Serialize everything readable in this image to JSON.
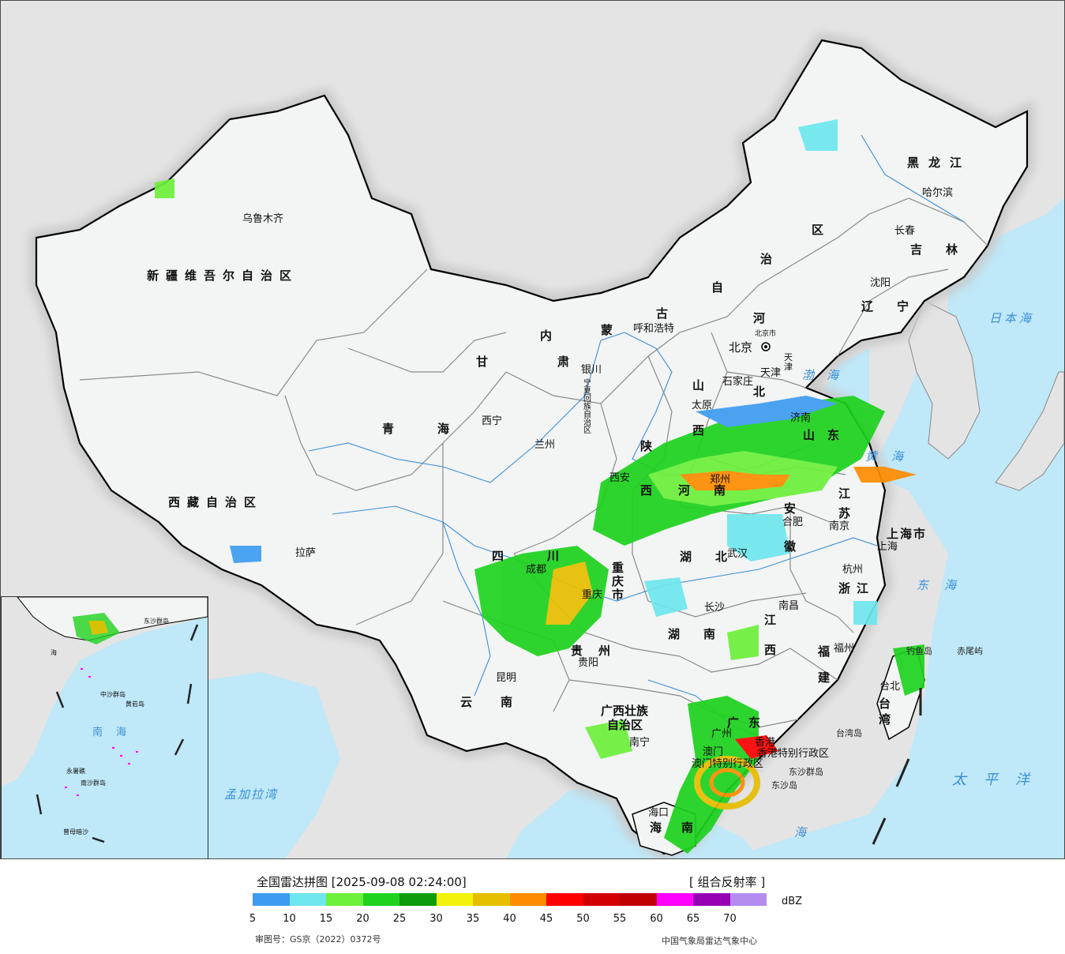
{
  "map": {
    "province_labels": [
      {
        "id": "xinjiang",
        "text": "新疆维吾尔自治区"
      },
      {
        "id": "xizang",
        "text": "西藏自治区"
      },
      {
        "id": "qinghai",
        "text": "青海"
      },
      {
        "id": "gansu",
        "text": "甘肃"
      },
      {
        "id": "neimenggu-1",
        "text": "内"
      },
      {
        "id": "neimenggu-2",
        "text": "蒙"
      },
      {
        "id": "neimenggu-3",
        "text": "古"
      },
      {
        "id": "neimenggu-4",
        "text": "自"
      },
      {
        "id": "neimenggu-5",
        "text": "治"
      },
      {
        "id": "neimenggu-6",
        "text": "区"
      },
      {
        "id": "heilongjiang",
        "text": "黑龙江"
      },
      {
        "id": "jilin",
        "text": "吉林"
      },
      {
        "id": "liaoning",
        "text": "辽宁"
      },
      {
        "id": "hebei-1",
        "text": "河"
      },
      {
        "id": "hebei-2",
        "text": "北"
      },
      {
        "id": "shanxi-1",
        "text": "山"
      },
      {
        "id": "shanxi-2",
        "text": "西"
      },
      {
        "id": "shandong",
        "text": "山东"
      },
      {
        "id": "henan",
        "text": "河南"
      },
      {
        "id": "shaanxi-1",
        "text": "陕"
      },
      {
        "id": "shaanxi-2",
        "text": "西"
      },
      {
        "id": "ningxia",
        "text": "宁夏回族自治区"
      },
      {
        "id": "sichuan",
        "text": "四川"
      },
      {
        "id": "chongqing",
        "text": "重庆市"
      },
      {
        "id": "hubei",
        "text": "湖北"
      },
      {
        "id": "hunan",
        "text": "湖南"
      },
      {
        "id": "anhui-1",
        "text": "安"
      },
      {
        "id": "anhui-2",
        "text": "徽"
      },
      {
        "id": "jiangsu",
        "text": "江苏"
      },
      {
        "id": "shanghai",
        "text": "上海市"
      },
      {
        "id": "zhejiang",
        "text": "浙江"
      },
      {
        "id": "jiangxi-1",
        "text": "江"
      },
      {
        "id": "jiangxi-2",
        "text": "西"
      },
      {
        "id": "fujian-1",
        "text": "福"
      },
      {
        "id": "fujian-2",
        "text": "建"
      },
      {
        "id": "taiwan",
        "text": "台湾"
      },
      {
        "id": "guangdong",
        "text": "广东"
      },
      {
        "id": "guangxi-1",
        "text": "广西壮族"
      },
      {
        "id": "guangxi-2",
        "text": "自治区"
      },
      {
        "id": "guizhou",
        "text": "贵州"
      },
      {
        "id": "yunnan",
        "text": "云南"
      },
      {
        "id": "hainan-1",
        "text": "海"
      },
      {
        "id": "hainan-2",
        "text": "南"
      },
      {
        "id": "hongkong",
        "text": "香港特别行政区"
      },
      {
        "id": "macao",
        "text": "澳门特别行政区"
      },
      {
        "id": "tianjin",
        "text": "天津"
      },
      {
        "id": "beijing-shi",
        "text": "北京市"
      }
    ],
    "city_labels": [
      {
        "id": "urumqi",
        "text": "乌鲁木齐"
      },
      {
        "id": "lhasa",
        "text": "拉萨"
      },
      {
        "id": "xining",
        "text": "西宁"
      },
      {
        "id": "lanzhou",
        "text": "兰州"
      },
      {
        "id": "yinchuan",
        "text": "银川"
      },
      {
        "id": "hohhot",
        "text": "呼和浩特"
      },
      {
        "id": "harbin",
        "text": "哈尔滨"
      },
      {
        "id": "changchun",
        "text": "长春"
      },
      {
        "id": "shenyang",
        "text": "沈阳"
      },
      {
        "id": "beijing",
        "text": "北京"
      },
      {
        "id": "tianjin-c",
        "text": "天津"
      },
      {
        "id": "shijiazhuang",
        "text": "石家庄"
      },
      {
        "id": "taiyuan",
        "text": "太原"
      },
      {
        "id": "jinan",
        "text": "济南"
      },
      {
        "id": "zhengzhou",
        "text": "郑州"
      },
      {
        "id": "xian",
        "text": "西安"
      },
      {
        "id": "hefei",
        "text": "合肥"
      },
      {
        "id": "nanjing",
        "text": "南京"
      },
      {
        "id": "shanghai-c",
        "text": "上海"
      },
      {
        "id": "hangzhou",
        "text": "杭州"
      },
      {
        "id": "wuhan",
        "text": "武汉"
      },
      {
        "id": "chengdu",
        "text": "成都"
      },
      {
        "id": "chongqing-c",
        "text": "重庆"
      },
      {
        "id": "changsha",
        "text": "长沙"
      },
      {
        "id": "nanchang",
        "text": "南昌"
      },
      {
        "id": "fuzhou",
        "text": "福州"
      },
      {
        "id": "guiyang",
        "text": "贵阳"
      },
      {
        "id": "kunming",
        "text": "昆明"
      },
      {
        "id": "nanning",
        "text": "南宁"
      },
      {
        "id": "guangzhou",
        "text": "广州"
      },
      {
        "id": "macao-c",
        "text": "澳门"
      },
      {
        "id": "hongkong-c",
        "text": "香港"
      },
      {
        "id": "haikou",
        "text": "海口"
      },
      {
        "id": "taibei",
        "text": "台北"
      }
    ],
    "sea_labels": [
      {
        "id": "japan-sea",
        "text": "日本海"
      },
      {
        "id": "bohai",
        "text": "渤海"
      },
      {
        "id": "yellow-sea",
        "text": "黄海"
      },
      {
        "id": "east-sea",
        "text": "东海"
      },
      {
        "id": "pacific",
        "text": "太平洋"
      },
      {
        "id": "south-sea",
        "text": "海"
      },
      {
        "id": "bengal",
        "text": "孟加拉湾"
      }
    ],
    "island_labels": [
      {
        "id": "diaoyu",
        "text": "钓鱼岛"
      },
      {
        "id": "chiwei",
        "text": "赤尾屿"
      },
      {
        "id": "taiwan-dao",
        "text": "台湾岛"
      },
      {
        "id": "dongsha-qundao",
        "text": "东沙群岛"
      },
      {
        "id": "dongsha-dao",
        "text": "东沙岛"
      }
    ],
    "inset": {
      "labels": [
        {
          "id": "inset-nanhai-1",
          "text": "南"
        },
        {
          "id": "inset-nanhai-2",
          "text": "海"
        },
        {
          "id": "inset-zhongsha",
          "text": "中沙群岛"
        },
        {
          "id": "inset-huangyan",
          "text": "黄岩岛"
        },
        {
          "id": "inset-yongshu",
          "text": "永暑礁"
        },
        {
          "id": "inset-nansha",
          "text": "南沙群岛"
        },
        {
          "id": "inset-zengmu",
          "text": "曾母暗沙"
        },
        {
          "id": "inset-dongsha",
          "text": "东沙群岛"
        },
        {
          "id": "inset-hainan",
          "text": "海"
        }
      ]
    },
    "colors": {
      "sea": "#bfe8f8",
      "land_china": "#f3f4f4",
      "land_other": "#e4e4e4",
      "border_national": "#000000",
      "border_province": "#8a8a8a",
      "river": "#3a8fd6",
      "outer_glow": "#c8c8c8"
    }
  },
  "legend": {
    "title": "全国雷达拼图 [2025-09-08 02:24:00]",
    "product": "[ 组合反射率 ]",
    "unit": "dBZ",
    "colors": [
      "#3d9cf0",
      "#6ee6ee",
      "#6cf03a",
      "#1ed21e",
      "#0c9c0c",
      "#f2f20a",
      "#e6be00",
      "#ff8c00",
      "#ff0000",
      "#d20000",
      "#c00000",
      "#ff00ff",
      "#9600b4",
      "#b48cf0"
    ],
    "ticks": [
      "5",
      "10",
      "15",
      "20",
      "25",
      "30",
      "35",
      "40",
      "45",
      "50",
      "55",
      "60",
      "65",
      "70"
    ],
    "review_number": "审图号：GS京（2022）0372号",
    "producer": "中国气象局雷达气象中心"
  }
}
